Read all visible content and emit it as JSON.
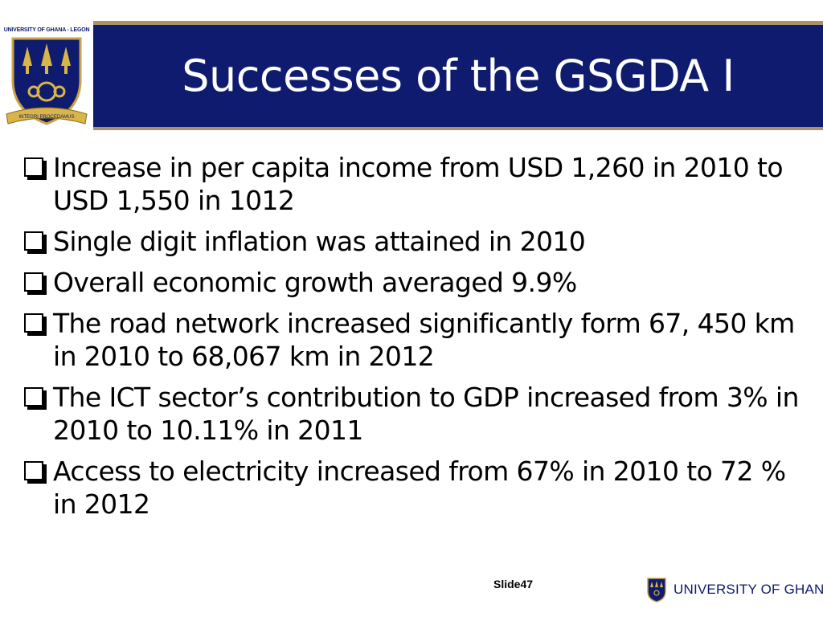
{
  "header": {
    "title": "Successes of the GSGDA I",
    "logo_caption": "UNIVERSITY OF GHANA - LEGON",
    "logo_motto": "INTEGRI PROCEDAMUS"
  },
  "bullets": [
    "Increase in per capita income from USD 1,260 in 2010 to USD 1,550 in 1012",
    "Single digit inflation was attained in 2010",
    "Overall economic growth averaged 9.9%",
    "The road network increased significantly form 67, 450 km in 2010 to 68,067 km in 2012",
    "The ICT sector’s contribution to GDP increased from 3% in 2010 to 10.11% in 2011",
    "Access to electricity increased from 67% in 2010 to 72 % in 2012"
  ],
  "footer": {
    "slide_label": "Slide47",
    "brand": "UNIVERSITY OF GHANA"
  },
  "colors": {
    "title_bar": "#0f1b6e",
    "accent_gold": "#a99267",
    "text": "#000000"
  }
}
